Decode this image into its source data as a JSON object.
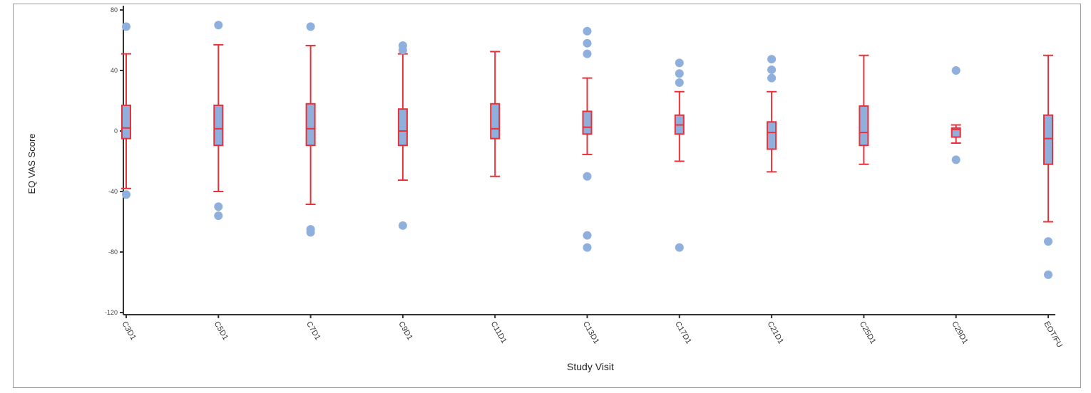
{
  "chart_data": {
    "type": "boxplot",
    "xlabel": "Study Visit",
    "ylabel": "EQ VAS Score",
    "ylim": [
      -120,
      80
    ],
    "yticks": [
      80,
      40,
      0,
      -40,
      -80,
      -120
    ],
    "grid": false,
    "colors": {
      "box_fill": "#8fb0dd",
      "box_stroke": "#e8313a",
      "outlier": "#8fb0dd",
      "axis": "#333333"
    },
    "categories": [
      "C3D1",
      "C5D1",
      "C7D1",
      "C9D1",
      "C11D1",
      "C13D1",
      "C17D1",
      "C21D1",
      "C25D1",
      "C29D1",
      "EOT/FU"
    ],
    "boxes": [
      {
        "whisker_high": 51,
        "q3": 17,
        "median": 2,
        "q1": -5,
        "whisker_low": -38,
        "outliers": [
          69,
          -42
        ]
      },
      {
        "whisker_high": 57,
        "q3": 17,
        "median": 1.5,
        "q1": -9.5,
        "whisker_low": -40,
        "outliers": [
          70,
          -50,
          -56
        ]
      },
      {
        "whisker_high": 56.5,
        "q3": 18,
        "median": 1.5,
        "q1": -9.5,
        "whisker_low": -48.5,
        "outliers": [
          69,
          -65,
          -67
        ]
      },
      {
        "whisker_high": 51,
        "q3": 14.5,
        "median": 0,
        "q1": -9.5,
        "whisker_low": -32.5,
        "outliers": [
          56.5,
          53.5,
          -62.5
        ]
      },
      {
        "whisker_high": 52.5,
        "q3": 18,
        "median": 1.5,
        "q1": -5,
        "whisker_low": -30,
        "outliers": []
      },
      {
        "whisker_high": 35,
        "q3": 13,
        "median": 2.5,
        "q1": -2,
        "whisker_low": -15.5,
        "outliers": [
          66,
          58,
          51,
          -30,
          -69,
          -77
        ]
      },
      {
        "whisker_high": 26,
        "q3": 10.5,
        "median": 4,
        "q1": -2,
        "whisker_low": -20,
        "outliers": [
          45,
          38,
          32,
          -77
        ]
      },
      {
        "whisker_high": 26,
        "q3": 6,
        "median": -1,
        "q1": -12,
        "whisker_low": -27,
        "outliers": [
          47.5,
          40.5,
          35
        ]
      },
      {
        "whisker_high": 50,
        "q3": 16.5,
        "median": -1,
        "q1": -9.5,
        "whisker_low": -22,
        "outliers": []
      },
      {
        "whisker_high": 4,
        "q3": 2,
        "median": 1,
        "q1": -4,
        "whisker_low": -8,
        "outliers": [
          40,
          -19
        ]
      },
      {
        "whisker_high": 50,
        "q3": 10.5,
        "median": -5,
        "q1": -22,
        "whisker_low": -60,
        "outliers": [
          -73,
          -95
        ]
      }
    ]
  }
}
